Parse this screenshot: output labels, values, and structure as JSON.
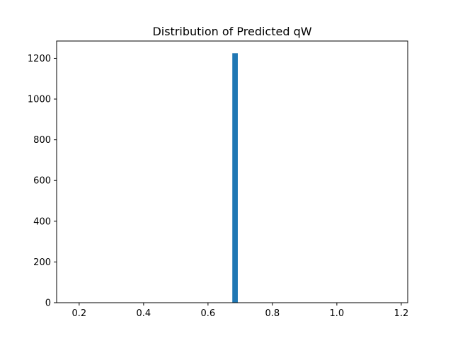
{
  "chart_data": {
    "type": "bar",
    "title": "Distribution of Predicted qW",
    "xlabel": "",
    "ylabel": "",
    "xlim": [
      0.13,
      1.22
    ],
    "ylim": [
      0,
      1285
    ],
    "grid": false,
    "x_ticks": [
      0.2,
      0.4,
      0.6,
      0.8,
      1.0,
      1.2
    ],
    "x_tick_labels": [
      "0.2",
      "0.4",
      "0.6",
      "0.8",
      "1.0",
      "1.2"
    ],
    "y_ticks": [
      0,
      200,
      400,
      600,
      800,
      1000,
      1200
    ],
    "y_tick_labels": [
      "0",
      "200",
      "400",
      "600",
      "800",
      "1000",
      "1200"
    ],
    "bar_color": "#1f77b4",
    "bins": [
      {
        "x_start": 0.6755,
        "x_end": 0.6925,
        "count": 1225
      }
    ]
  }
}
